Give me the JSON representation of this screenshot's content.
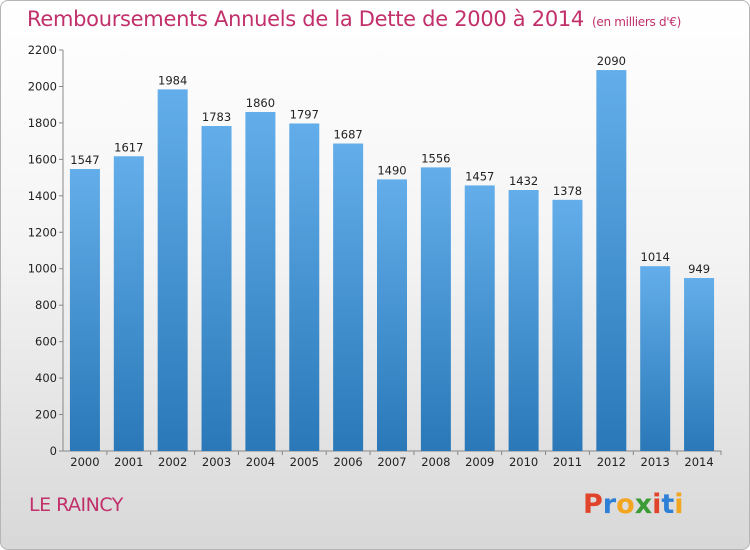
{
  "title": "Remboursements Annuels de la Dette de 2000 à 2014",
  "title_unit": "(en milliers d'€)",
  "city": "LE RAINCY",
  "logo": "Proxiti",
  "colors": {
    "title": "#c1306b",
    "bar_top": "#63aeea",
    "bar_bottom": "#2a78b8",
    "logo_letters": [
      "#e0452c",
      "#2e7fd6",
      "#f2a51f",
      "#3b9b35",
      "#e0452c",
      "#2e7fd6",
      "#f2a51f"
    ]
  },
  "chart_data": {
    "type": "bar",
    "title": "Remboursements Annuels de la Dette de 2000 à 2014",
    "xlabel": "",
    "ylabel": "",
    "categories": [
      "2000",
      "2001",
      "2002",
      "2003",
      "2004",
      "2005",
      "2006",
      "2007",
      "2008",
      "2009",
      "2010",
      "2011",
      "2012",
      "2013",
      "2014"
    ],
    "values": [
      1547,
      1617,
      1984,
      1783,
      1860,
      1797,
      1687,
      1490,
      1556,
      1457,
      1432,
      1378,
      2090,
      1014,
      949
    ],
    "ylim": [
      0,
      2200
    ],
    "yticks": [
      0,
      200,
      400,
      600,
      800,
      1000,
      1200,
      1400,
      1600,
      1800,
      2000,
      2200
    ],
    "grid": false,
    "legend": "none"
  }
}
